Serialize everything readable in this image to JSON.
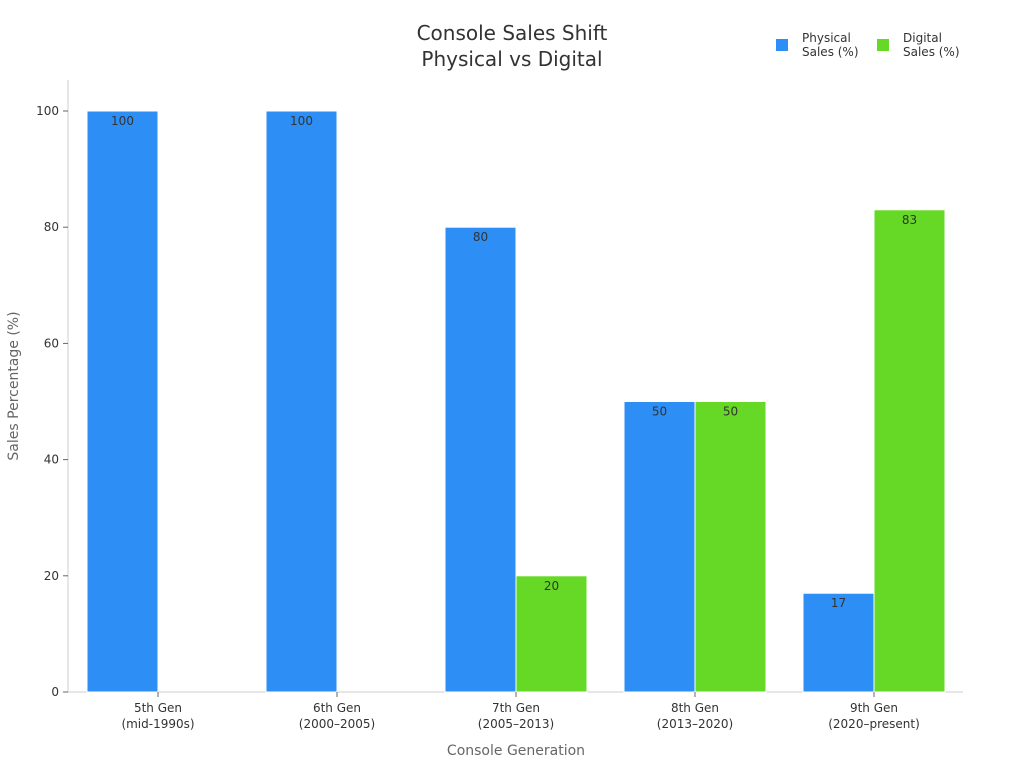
{
  "chart_data": {
    "type": "bar",
    "title": [
      "Console Sales Shift",
      "Physical vs Digital"
    ],
    "xlabel": "Console Generation",
    "ylabel": "Sales Percentage (%)",
    "ylim": [
      0,
      100
    ],
    "yticks": [
      0,
      20,
      40,
      60,
      80,
      100
    ],
    "categories": [
      [
        "5th Gen",
        "(mid-1990s)"
      ],
      [
        "6th Gen",
        "(2000–2005)"
      ],
      [
        "7th Gen",
        "(2005–2013)"
      ],
      [
        "8th Gen",
        "(2013–2020)"
      ],
      [
        "9th Gen",
        "(2020–present)"
      ]
    ],
    "series": [
      {
        "name": [
          "Physical",
          "Sales (%)"
        ],
        "color": "#2d8ff5",
        "values": [
          100,
          100,
          80,
          50,
          17
        ]
      },
      {
        "name": [
          "Digital",
          "Sales (%)"
        ],
        "color": "#66d926",
        "values": [
          0,
          0,
          20,
          50,
          83
        ]
      }
    ],
    "grid": false,
    "legend_position": "top-right"
  }
}
